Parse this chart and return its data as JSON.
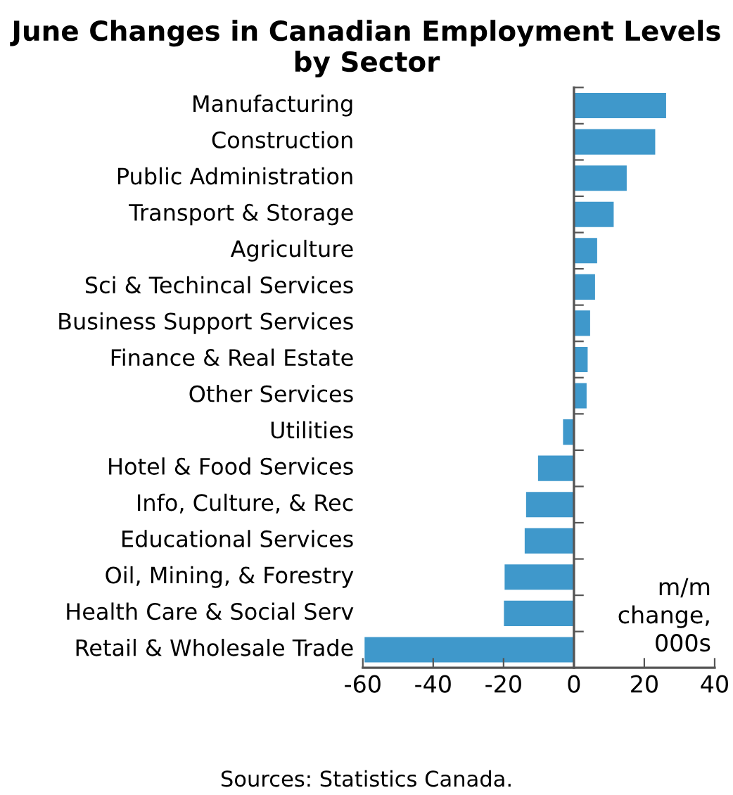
{
  "chart_data": {
    "type": "bar",
    "orientation": "horizontal",
    "title": "June Changes in Canadian Employment Levels by Sector",
    "categories": [
      "Manufacturing",
      "Construction",
      "Public Administration",
      "Transport & Storage",
      "Agriculture",
      "Sci & Techincal Services",
      "Business Support Services",
      "Finance & Real Estate",
      "Other Services",
      "Utilities",
      "Hotel & Food Services",
      "Info, Culture, & Rec",
      "Educational Services",
      "Oil, Mining, & Forestry",
      "Health Care & Social Serv",
      "Retail & Wholesale Trade"
    ],
    "values": [
      26.2,
      23.1,
      15.0,
      11.3,
      6.6,
      6.0,
      4.6,
      3.9,
      3.6,
      -3.1,
      -10.2,
      -13.6,
      -14.0,
      -19.7,
      -19.9,
      -59.5
    ],
    "color": "#3f98cb",
    "xlim": [
      -60,
      40
    ],
    "xticks": [
      {
        "value": -60,
        "label": "-60"
      },
      {
        "value": -40,
        "label": "-40"
      },
      {
        "value": -20,
        "label": "-20"
      },
      0,
      20,
      40
    ],
    "annotations": [
      {
        "text": "m/m\nchange,\n000s"
      },
      "Sources: Statistics Canada."
    ]
  }
}
